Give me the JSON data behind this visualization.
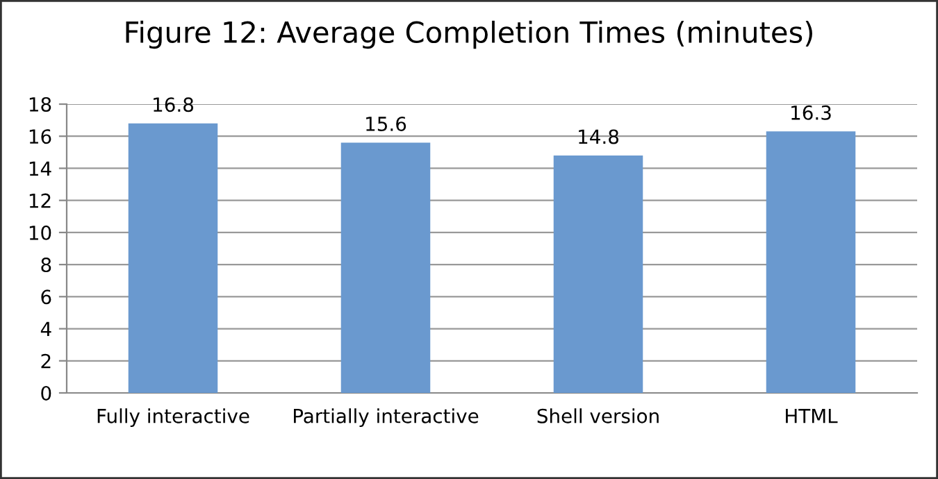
{
  "chart_data": {
    "type": "bar",
    "title": "Figure 12: Average Completion Times (minutes)",
    "categories": [
      "Fully interactive",
      "Partially interactive",
      "Shell version",
      "HTML"
    ],
    "values": [
      16.8,
      15.6,
      14.8,
      16.3
    ],
    "color": "#6a99cf",
    "ylim": [
      0,
      18
    ],
    "yticks": [
      0,
      2,
      4,
      6,
      8,
      10,
      12,
      14,
      16,
      18
    ],
    "grid": "y",
    "data_labels": true
  }
}
